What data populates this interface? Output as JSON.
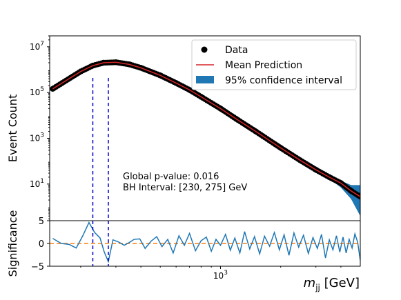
{
  "chart_data": [
    {
      "panel": "main",
      "type": "scatter",
      "title": "",
      "xlabel": "",
      "ylabel": "Event Count",
      "xscale": "log",
      "yscale": "log",
      "xlim": [
        140,
        5000
      ],
      "ylim": [
        0.25,
        30000000
      ],
      "y_ticks": [
        {
          "value": 10,
          "label": "10^1"
        },
        {
          "value": 1000,
          "label": "10^3"
        },
        {
          "value": 100000,
          "label": "10^5"
        },
        {
          "value": 10000000,
          "label": "10^7"
        }
      ],
      "legend_position": "upper right",
      "series": [
        {
          "name": "Data",
          "kind": "markers",
          "color": "#000000",
          "points": [
            [
              145,
              145000
            ],
            [
              200,
              830000
            ],
            [
              230,
              1500000
            ],
            [
              260,
              2000000
            ],
            [
              300,
              2100000
            ],
            [
              350,
              1700000
            ],
            [
              400,
              1200000
            ],
            [
              500,
              560000
            ],
            [
              600,
              260000
            ],
            [
              700,
              130000
            ],
            [
              800,
              65000
            ],
            [
              1000,
              20000
            ],
            [
              1200,
              7000
            ],
            [
              1500,
              2000
            ],
            [
              2000,
              380
            ],
            [
              2500,
              110
            ],
            [
              3000,
              42
            ],
            [
              3500,
              20
            ],
            [
              4000,
              11
            ],
            [
              4500,
              5
            ],
            [
              5000,
              2.8
            ]
          ]
        },
        {
          "name": "Mean Prediction",
          "kind": "line",
          "color": "#d62728",
          "points": [
            [
              145,
              145000
            ],
            [
              200,
              830000
            ],
            [
              230,
              1500000
            ],
            [
              260,
              2000000
            ],
            [
              300,
              2100000
            ],
            [
              350,
              1700000
            ],
            [
              400,
              1200000
            ],
            [
              500,
              560000
            ],
            [
              600,
              260000
            ],
            [
              700,
              130000
            ],
            [
              800,
              65000
            ],
            [
              1000,
              20000
            ],
            [
              1200,
              7000
            ],
            [
              1500,
              2000
            ],
            [
              2000,
              380
            ],
            [
              2500,
              110
            ],
            [
              3000,
              42
            ],
            [
              3500,
              20
            ],
            [
              4000,
              11
            ],
            [
              4500,
              5
            ],
            [
              5000,
              2.8
            ]
          ]
        },
        {
          "name": "95% confidence interval",
          "kind": "band",
          "color": "#1f77b4",
          "lower": [
            [
              3000,
              40
            ],
            [
              3500,
              17
            ],
            [
              4000,
              7
            ],
            [
              4500,
              2.2
            ],
            [
              5000,
              0.4
            ]
          ],
          "upper": [
            [
              3000,
              44
            ],
            [
              3500,
              23
            ],
            [
              4000,
              14
            ],
            [
              4500,
              9
            ],
            [
              5000,
              9
            ]
          ]
        }
      ],
      "annotations": [
        "Global p-value: 0.016",
        "BH Interval: [230, 275] GeV"
      ],
      "vlines": [
        230,
        275
      ]
    },
    {
      "panel": "significance",
      "type": "line",
      "xlabel": "m_jj [GeV]",
      "ylabel": "Significance",
      "xscale": "log",
      "xlim": [
        140,
        5000
      ],
      "ylim": [
        -5,
        5
      ],
      "x_ticks": [
        {
          "value": 1000,
          "label": "10^3"
        }
      ],
      "y_ticks": [
        {
          "value": -5,
          "label": "−5"
        },
        {
          "value": 0,
          "label": "0"
        },
        {
          "value": 5,
          "label": "5"
        }
      ],
      "reference_line": {
        "y": 0,
        "color": "#ff7f0e",
        "style": "dashed"
      },
      "series": [
        {
          "name": "Significance",
          "color": "#1f77b4",
          "x": [
            145,
            160,
            175,
            190,
            205,
            220,
            235,
            250,
            262,
            275,
            290,
            310,
            330,
            350,
            370,
            395,
            420,
            450,
            480,
            510,
            545,
            580,
            620,
            660,
            700,
            750,
            800,
            850,
            900,
            950,
            1000,
            1060,
            1120,
            1180,
            1250,
            1320,
            1400,
            1480,
            1570,
            1660,
            1760,
            1860,
            1970,
            2080,
            2200,
            2330,
            2460,
            2600,
            2750,
            2900,
            3050,
            3200,
            3350,
            3500,
            3650,
            3800,
            3950,
            4100,
            4250,
            4400,
            4550,
            4700,
            4850,
            5000
          ],
          "y": [
            1.1,
            0.0,
            -0.2,
            -1.0,
            1.7,
            4.6,
            2.4,
            1.2,
            -1.8,
            -4.0,
            0.8,
            0.3,
            -0.4,
            0.2,
            0.9,
            1.0,
            -1.1,
            0.5,
            1.5,
            -0.7,
            0.9,
            -2.1,
            1.7,
            -0.4,
            2.2,
            -1.6,
            0.6,
            1.4,
            -1.7,
            0.9,
            -0.4,
            2.0,
            -1.5,
            1.2,
            -2.1,
            2.6,
            -1.2,
            1.5,
            -2.3,
            1.6,
            -0.6,
            2.4,
            -1.4,
            1.9,
            -2.6,
            2.3,
            -0.8,
            1.8,
            -2.2,
            1.3,
            -1.1,
            2.0,
            -3.2,
            0.8,
            -1.4,
            1.7,
            -1.9,
            1.4,
            -2.1,
            0.9,
            -1.0,
            2.1,
            0.3,
            -3.7
          ]
        }
      ],
      "vlines": [
        230,
        275
      ]
    }
  ]
}
